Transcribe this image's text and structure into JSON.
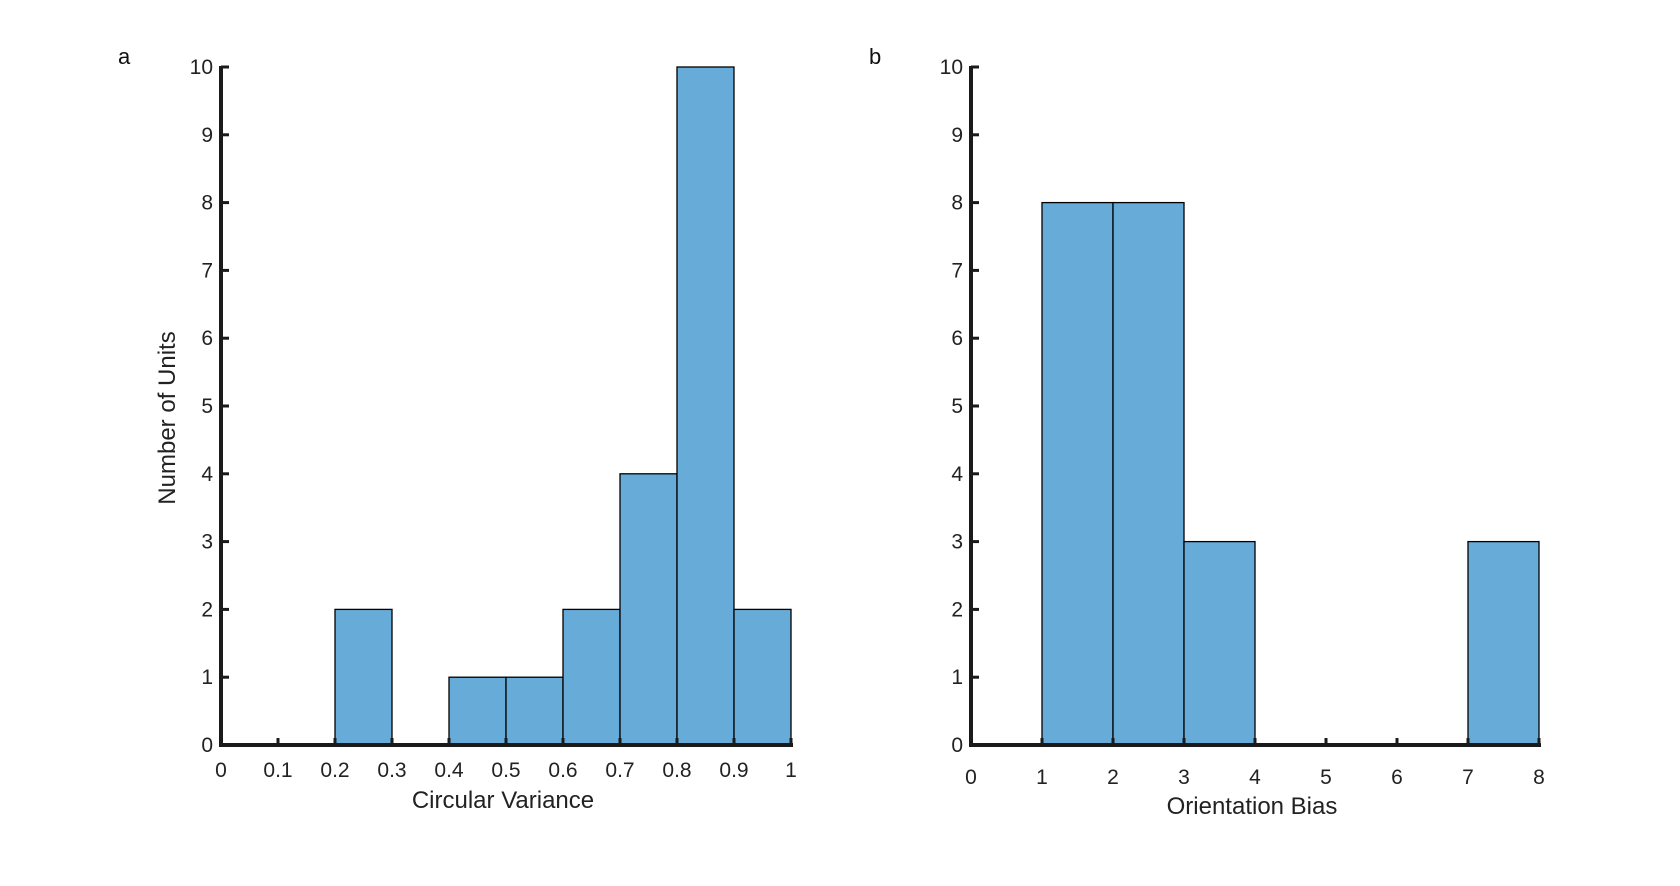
{
  "colors": {
    "bar_fill": "#67abd8",
    "bar_stroke": "#000000",
    "axis": "#1a1a1a"
  },
  "chart_data": [
    {
      "type": "bar",
      "panel_label": "a",
      "xlabel": "Circular Variance",
      "ylabel": "Number of Units",
      "xlim": [
        0,
        1
      ],
      "ylim": [
        0,
        10
      ],
      "xticks": [
        0,
        0.1,
        0.2,
        0.3,
        0.4,
        0.5,
        0.6,
        0.7,
        0.8,
        0.9,
        1
      ],
      "xtick_labels": [
        "0",
        "0.1",
        "0.2",
        "0.3",
        "0.4",
        "0.5",
        "0.6",
        "0.7",
        "0.8",
        "0.9",
        "1"
      ],
      "yticks": [
        0,
        1,
        2,
        3,
        4,
        5,
        6,
        7,
        8,
        9,
        10
      ],
      "ytick_labels": [
        "0",
        "1",
        "2",
        "3",
        "4",
        "5",
        "6",
        "7",
        "8",
        "9",
        "10"
      ],
      "bins": [
        {
          "from": 0.0,
          "to": 0.1,
          "count": 0
        },
        {
          "from": 0.1,
          "to": 0.2,
          "count": 0
        },
        {
          "from": 0.2,
          "to": 0.3,
          "count": 2
        },
        {
          "from": 0.3,
          "to": 0.4,
          "count": 0
        },
        {
          "from": 0.4,
          "to": 0.5,
          "count": 1
        },
        {
          "from": 0.5,
          "to": 0.6,
          "count": 1
        },
        {
          "from": 0.6,
          "to": 0.7,
          "count": 2
        },
        {
          "from": 0.7,
          "to": 0.8,
          "count": 4
        },
        {
          "from": 0.8,
          "to": 0.9,
          "count": 10
        },
        {
          "from": 0.9,
          "to": 1.0,
          "count": 2
        }
      ],
      "grid": false
    },
    {
      "type": "bar",
      "panel_label": "b",
      "xlabel": "Orientation Bias",
      "ylabel": "",
      "xlim": [
        0,
        8
      ],
      "ylim": [
        0,
        10
      ],
      "xticks": [
        0,
        1,
        2,
        3,
        4,
        5,
        6,
        7,
        8
      ],
      "xtick_labels": [
        "0",
        "1",
        "2",
        "3",
        "4",
        "5",
        "6",
        "7",
        "8"
      ],
      "yticks": [
        0,
        1,
        2,
        3,
        4,
        5,
        6,
        7,
        8,
        9,
        10
      ],
      "ytick_labels": [
        "0",
        "1",
        "2",
        "3",
        "4",
        "5",
        "6",
        "7",
        "8",
        "9",
        "10"
      ],
      "bins": [
        {
          "from": 1,
          "to": 2,
          "count": 8
        },
        {
          "from": 2,
          "to": 3,
          "count": 8
        },
        {
          "from": 3,
          "to": 4,
          "count": 3
        },
        {
          "from": 4,
          "to": 5,
          "count": 0
        },
        {
          "from": 5,
          "to": 6,
          "count": 0
        },
        {
          "from": 6,
          "to": 7,
          "count": 0
        },
        {
          "from": 7,
          "to": 8,
          "count": 3
        }
      ],
      "grid": false
    }
  ]
}
